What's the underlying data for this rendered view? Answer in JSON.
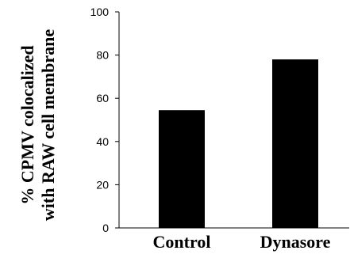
{
  "chart_data": {
    "type": "bar",
    "categories": [
      "Control",
      "Dynasore"
    ],
    "values": [
      54.5,
      78
    ],
    "ylabel_lines": [
      "% CPMV colocalized",
      "with RAW cell membrane"
    ],
    "ylim": [
      0,
      100
    ],
    "yticks": [
      "0",
      "20",
      "40",
      "60",
      "80",
      "100"
    ],
    "grid": false,
    "bar_color": "#000000"
  }
}
